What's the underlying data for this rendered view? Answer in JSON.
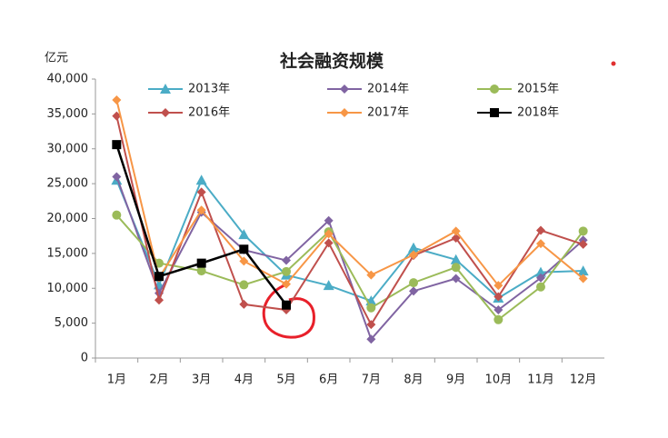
{
  "chart_data": {
    "type": "line",
    "title": "社会融资规模",
    "y_axis_label": "亿元",
    "categories": [
      "1月",
      "2月",
      "3月",
      "4月",
      "5月",
      "6月",
      "7月",
      "8月",
      "9月",
      "10月",
      "11月",
      "12月"
    ],
    "series": [
      {
        "name": "2013年",
        "color": "#4bacc6",
        "marker": "triangle",
        "values": [
          25500,
          10500,
          25500,
          17700,
          11900,
          10400,
          8200,
          15800,
          14100,
          8600,
          12300,
          12500
        ]
      },
      {
        "name": "2014年",
        "color": "#8064a2",
        "marker": "diamond",
        "values": [
          26000,
          9300,
          20900,
          15500,
          14000,
          19700,
          2700,
          9600,
          11400,
          6900,
          11500,
          16900
        ]
      },
      {
        "name": "2015年",
        "color": "#9bbb59",
        "marker": "circle",
        "values": [
          20500,
          13600,
          12500,
          10500,
          12400,
          18100,
          7200,
          10800,
          13000,
          5500,
          10200,
          18200
        ]
      },
      {
        "name": "2016年",
        "color": "#c0504d",
        "marker": "diamond",
        "values": [
          34700,
          8300,
          23800,
          7700,
          6900,
          16500,
          4800,
          14700,
          17200,
          8800,
          18300,
          16300
        ]
      },
      {
        "name": "2017年",
        "color": "#f79646",
        "marker": "diamond",
        "values": [
          37000,
          11500,
          21200,
          13900,
          10600,
          17800,
          11900,
          14800,
          18200,
          10400,
          16400,
          11400
        ]
      },
      {
        "name": "2018年",
        "color": "#000000",
        "marker": "square",
        "values": [
          30600,
          11700,
          13600,
          15600,
          7600,
          null,
          null,
          null,
          null,
          null,
          null,
          null
        ]
      }
    ],
    "ylim": [
      0,
      40000
    ],
    "yticks": [
      0,
      {
        "value": 5000,
        "label": "5,000"
      },
      {
        "value": 10000,
        "label": "10,000"
      },
      {
        "value": 15000,
        "label": "15,000"
      },
      {
        "value": 20000,
        "label": "20,000"
      },
      {
        "value": 25000,
        "label": "25,000"
      },
      {
        "value": 30000,
        "label": "30,000"
      },
      {
        "value": 35000,
        "label": "35,000"
      },
      {
        "value": 40000,
        "label": "40,000"
      }
    ],
    "grid": false
  }
}
